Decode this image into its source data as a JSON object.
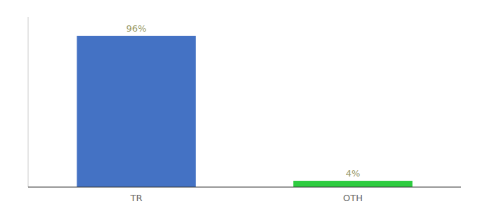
{
  "chart_data": {
    "type": "bar",
    "categories": [
      "TR",
      "OTH"
    ],
    "values": [
      96,
      4
    ],
    "value_labels": [
      "96%",
      "4%"
    ],
    "colors": [
      "#4472C4",
      "#2ECC40"
    ],
    "ylim": [
      0,
      108
    ],
    "data_labels": true,
    "tick_labels": "x"
  }
}
